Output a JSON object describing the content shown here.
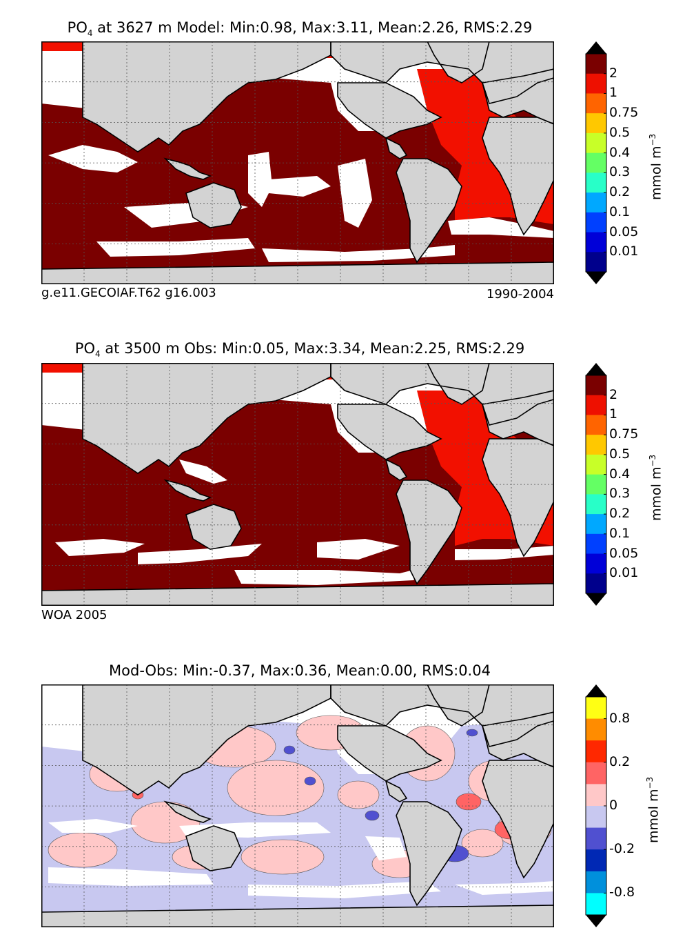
{
  "panels": [
    {
      "title_prefix": "PO",
      "title_sub": "4",
      "title_rest": " at 3627 m Model: Min:0.98, Max:3.11, Mean:2.26, RMS:2.29",
      "caption_left": "g.e11.GECOIAF.T62 g16.003",
      "caption_right": "1990-2004",
      "unit": "mmol m",
      "unit_sup": "−3",
      "colorbar": {
        "colors": [
          "#7a0000",
          "#ee1000",
          "#ff6400",
          "#ffc800",
          "#c8ff28",
          "#64ff64",
          "#28ffc8",
          "#00a8ff",
          "#0040ff",
          "#0000d8",
          "#00008c"
        ],
        "ticks": [
          "2",
          "1",
          "0.75",
          "0.5",
          "0.4",
          "0.3",
          "0.2",
          "0.1",
          "0.05",
          "0.01"
        ]
      }
    },
    {
      "title_prefix": "PO",
      "title_sub": "4",
      "title_rest": " at 3500 m Obs: Min:0.05, Max:3.34, Mean:2.25, RMS:2.29",
      "caption_left": "WOA 2005",
      "caption_right": "",
      "unit": "mmol m",
      "unit_sup": "−3",
      "colorbar": {
        "colors": [
          "#7a0000",
          "#ee1000",
          "#ff6400",
          "#ffc800",
          "#c8ff28",
          "#64ff64",
          "#28ffc8",
          "#00a8ff",
          "#0040ff",
          "#0000d8",
          "#00008c"
        ],
        "ticks": [
          "2",
          "1",
          "0.75",
          "0.5",
          "0.4",
          "0.3",
          "0.2",
          "0.1",
          "0.05",
          "0.01"
        ]
      }
    },
    {
      "title_prefix": "Mod-Obs: Min:-0.37, Max:0.36, Mean:0.00, RMS:0.04",
      "title_sub": "",
      "title_rest": "",
      "caption_left": "",
      "caption_right": "",
      "unit": "mmol m",
      "unit_sup": "−3",
      "colorbar": {
        "colors": [
          "#ffff14",
          "#ff8c00",
          "#ff2800",
          "#ff6464",
          "#ffc8c8",
          "#c8c8f0",
          "#5050d0",
          "#0028b4",
          "#0090dc",
          "#00ffff"
        ],
        "ticks": [
          "0.8",
          "0.2",
          "0",
          "-0.2",
          "-0.8"
        ]
      }
    }
  ]
}
